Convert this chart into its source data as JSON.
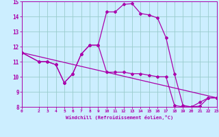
{
  "xlabel": "Windchill (Refroidissement éolien,°C)",
  "xlim": [
    0,
    23
  ],
  "ylim": [
    8,
    15
  ],
  "xticks": [
    0,
    2,
    3,
    4,
    5,
    6,
    7,
    8,
    9,
    10,
    11,
    12,
    13,
    14,
    15,
    16,
    17,
    18,
    19,
    20,
    21,
    22,
    23
  ],
  "yticks": [
    8,
    9,
    10,
    11,
    12,
    13,
    14,
    15
  ],
  "bg_color": "#cceeff",
  "line_color": "#aa00aa",
  "grid_color": "#99cccc",
  "line1_x": [
    0,
    2,
    3,
    4,
    5,
    6,
    7,
    8,
    9,
    10,
    11,
    12,
    13,
    14,
    15,
    16,
    17,
    18,
    19,
    20,
    21,
    22,
    23
  ],
  "line1_y": [
    11.6,
    11.0,
    11.0,
    10.8,
    9.6,
    10.2,
    11.5,
    12.1,
    12.1,
    10.3,
    10.3,
    10.3,
    10.2,
    10.2,
    10.1,
    10.0,
    10.0,
    8.1,
    8.0,
    8.0,
    8.3,
    8.6,
    8.6
  ],
  "line2_x": [
    0,
    2,
    3,
    4,
    5,
    6,
    7,
    8,
    9,
    10,
    11,
    12,
    13,
    14,
    15,
    16,
    17,
    18,
    19,
    20,
    21,
    22,
    23
  ],
  "line2_y": [
    11.6,
    11.0,
    11.0,
    10.8,
    9.6,
    10.2,
    11.5,
    12.1,
    12.1,
    14.3,
    14.3,
    14.8,
    14.85,
    14.2,
    14.1,
    13.9,
    12.6,
    10.2,
    8.1,
    8.0,
    8.05,
    8.6,
    8.6
  ],
  "line3_x": [
    0,
    23
  ],
  "line3_y": [
    11.6,
    8.6
  ]
}
